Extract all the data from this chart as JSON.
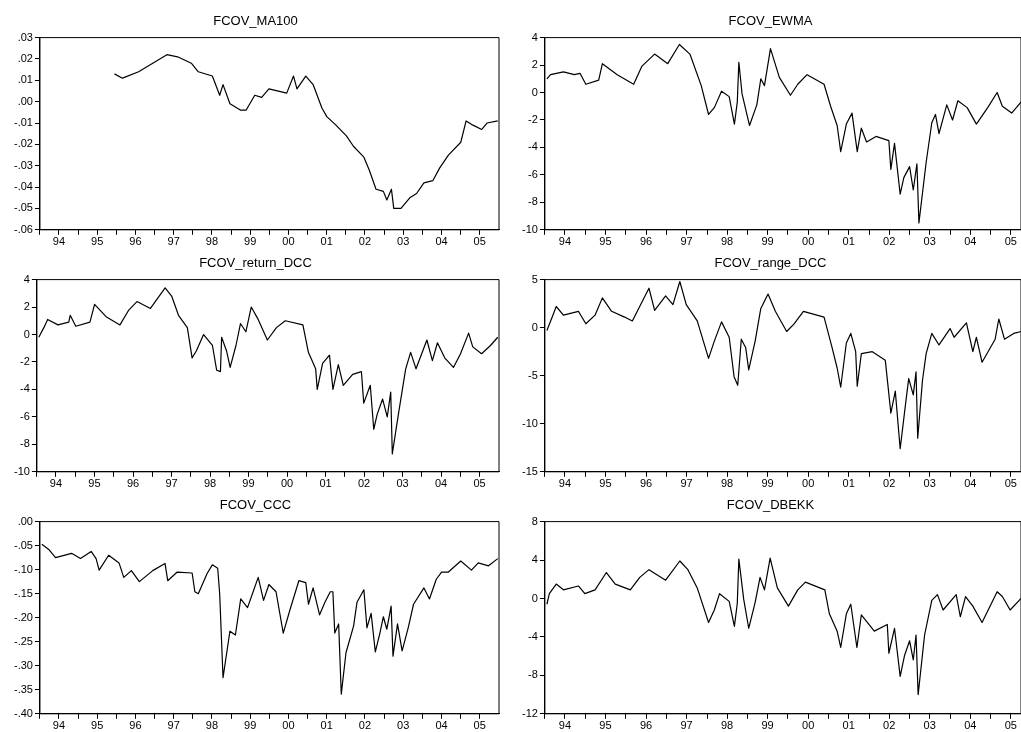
{
  "chart_data": [
    {
      "type": "line",
      "title": "FCOV_MA100",
      "color": "#000000",
      "marker": "none",
      "grid": false,
      "xlim": [
        "1994-01-01",
        "2006-01-01"
      ],
      "xticks": [
        {
          "value": "1994-01-01",
          "label": null
        },
        {
          "value": "1994-07-01",
          "label": "94"
        },
        {
          "value": "1995-01-01",
          "label": null
        },
        {
          "value": "1995-07-01",
          "label": "95"
        },
        {
          "value": "1996-01-01",
          "label": null
        },
        {
          "value": "1996-07-01",
          "label": "96"
        },
        {
          "value": "1997-01-01",
          "label": null
        },
        {
          "value": "1997-07-01",
          "label": "97"
        },
        {
          "value": "1998-01-01",
          "label": null
        },
        {
          "value": "1998-07-01",
          "label": "98"
        },
        {
          "value": "1999-01-01",
          "label": null
        },
        {
          "value": "1999-07-01",
          "label": "99"
        },
        {
          "value": "2000-01-01",
          "label": null
        },
        {
          "value": "2000-07-01",
          "label": "00"
        },
        {
          "value": "2001-01-01",
          "label": null
        },
        {
          "value": "2001-07-01",
          "label": "01"
        },
        {
          "value": "2002-01-01",
          "label": null
        },
        {
          "value": "2002-07-01",
          "label": "02"
        },
        {
          "value": "2003-01-01",
          "label": null
        },
        {
          "value": "2003-07-01",
          "label": "03"
        },
        {
          "value": "2004-01-01",
          "label": null
        },
        {
          "value": "2004-07-01",
          "label": "04"
        },
        {
          "value": "2005-01-01",
          "label": null
        },
        {
          "value": "2005-07-01",
          "label": "05"
        }
      ],
      "ylim": [
        -0.06,
        0.03
      ],
      "yticks": [
        {
          "value": 0.03,
          "label": ".03"
        },
        {
          "value": 0.02,
          "label": ".02"
        },
        {
          "value": 0.01,
          "label": ".01"
        },
        {
          "value": 0,
          "label": ".00"
        },
        {
          "value": -0.01,
          "label": "-.01"
        },
        {
          "value": -0.02,
          "label": "-.02"
        },
        {
          "value": -0.03,
          "label": "-.03"
        },
        {
          "value": -0.04,
          "label": "-.04"
        },
        {
          "value": -0.05,
          "label": "-.05"
        },
        {
          "value": -0.06,
          "label": "-.06"
        }
      ],
      "x": [
        "1995-12-13",
        "1996-02-28",
        "1996-07-31",
        "1996-12-13",
        "1997-04-27",
        "1997-08-07",
        "1997-12-16",
        "1998-02-21",
        "1998-07-05",
        "1998-09-13",
        "1998-10-15",
        "1998-12-20",
        "1999-04-02",
        "1999-05-23",
        "1999-08-14",
        "1999-10-19",
        "1999-12-27",
        "2000-06-14",
        "2000-08-18",
        "2000-09-20",
        "2000-12-13",
        "2001-02-21",
        "2001-05-16",
        "2001-07-02",
        "2001-09-27",
        "2002-01-05",
        "2002-03-15",
        "2002-06-21",
        "2002-08-11",
        "2002-10-15",
        "2002-12-24",
        "2003-01-26",
        "2003-03-11",
        "2003-04-02",
        "2003-06-10",
        "2003-09-02",
        "2003-11-06",
        "2004-01-15",
        "2004-04-09",
        "2004-06-14",
        "2004-09-05",
        "2005-01-01",
        "2005-02-21",
        "2005-04-27",
        "2005-07-20",
        "2005-09-09",
        "2005-12-20"
      ],
      "values": [
        0.013,
        0.011,
        0.014,
        0.018,
        0.022,
        0.021,
        0.018,
        0.014,
        0.012,
        0.003,
        0.008,
        -0.001,
        -0.004,
        -0.004,
        0.003,
        0.002,
        0.006,
        0.004,
        0.012,
        0.006,
        0.012,
        0.008,
        -0.003,
        -0.007,
        -0.011,
        -0.016,
        -0.021,
        -0.026,
        -0.032,
        -0.041,
        -0.042,
        -0.046,
        -0.041,
        -0.05,
        -0.05,
        -0.045,
        -0.043,
        -0.038,
        -0.037,
        -0.031,
        -0.025,
        -0.019,
        -0.009,
        -0.011,
        -0.013,
        -0.01,
        -0.009
      ]
    },
    {
      "type": "line",
      "title": "FCOV_EWMA",
      "color": "#000000",
      "marker": "none",
      "grid": false,
      "xlim": [
        "1994-01-01",
        "2005-10-01"
      ],
      "xticks": [
        {
          "value": "1994-01-01",
          "label": null
        },
        {
          "value": "1994-07-01",
          "label": "94"
        },
        {
          "value": "1995-01-01",
          "label": null
        },
        {
          "value": "1995-07-01",
          "label": "95"
        },
        {
          "value": "1996-01-01",
          "label": null
        },
        {
          "value": "1996-07-01",
          "label": "96"
        },
        {
          "value": "1997-01-01",
          "label": null
        },
        {
          "value": "1997-07-01",
          "label": "97"
        },
        {
          "value": "1998-01-01",
          "label": null
        },
        {
          "value": "1998-07-01",
          "label": "98"
        },
        {
          "value": "1999-01-01",
          "label": null
        },
        {
          "value": "1999-07-01",
          "label": "99"
        },
        {
          "value": "2000-01-01",
          "label": null
        },
        {
          "value": "2000-07-01",
          "label": "00"
        },
        {
          "value": "2001-01-01",
          "label": null
        },
        {
          "value": "2001-07-01",
          "label": "01"
        },
        {
          "value": "2002-01-01",
          "label": null
        },
        {
          "value": "2002-07-01",
          "label": "02"
        },
        {
          "value": "2003-01-01",
          "label": null
        },
        {
          "value": "2003-07-01",
          "label": "03"
        },
        {
          "value": "2004-01-01",
          "label": null
        },
        {
          "value": "2004-07-01",
          "label": "04"
        },
        {
          "value": "2005-01-01",
          "label": null
        },
        {
          "value": "2005-07-01",
          "label": "05"
        }
      ],
      "ylim": [
        -10,
        4
      ],
      "yticks": [
        4,
        2,
        0,
        -2,
        -4,
        -6,
        -8,
        -10
      ],
      "x": [
        "1994-01-19",
        "1994-02-21",
        "1994-06-17",
        "1994-09-23",
        "1994-11-13",
        "1995-01-05",
        "1995-05-01",
        "1995-06-03",
        "1995-10-15",
        "1996-03-11",
        "1996-05-23",
        "1996-09-16",
        "1997-01-12",
        "1997-04-27",
        "1997-07-31",
        "1997-11-10",
        "1998-01-15",
        "1998-03-08",
        "1998-05-12",
        "1998-07-20",
        "1998-09-05",
        "1998-10-01",
        "1998-10-15",
        "1998-11-13",
        "1999-01-19",
        "1999-03-26",
        "1999-05-01",
        "1999-06-03",
        "1999-07-27",
        "1999-10-15",
        "2000-01-23",
        "2000-03-29",
        "2000-06-21",
        "2000-11-21",
        "2001-01-19",
        "2001-03-19",
        "2001-04-20",
        "2001-06-10",
        "2001-07-31",
        "2001-09-16",
        "2001-10-23",
        "2001-12-09",
        "2002-03-04",
        "2002-06-28",
        "2002-07-16",
        "2002-08-18",
        "2002-10-08",
        "2002-11-10",
        "2003-01-01",
        "2003-02-03",
        "2003-03-08",
        "2003-03-26",
        "2003-05-30",
        "2003-07-20",
        "2003-08-22",
        "2003-09-23",
        "2003-12-02",
        "2004-01-23",
        "2004-03-11",
        "2004-06-03",
        "2004-08-25",
        "2004-12-05",
        "2005-02-28",
        "2005-04-16",
        "2005-07-09",
        "2005-10-01"
      ],
      "values": [
        1.0,
        1.3,
        1.5,
        1.3,
        1.4,
        0.6,
        0.9,
        2.1,
        1.3,
        0.6,
        1.9,
        2.8,
        2.1,
        3.5,
        2.8,
        0.5,
        -1.6,
        -1.1,
        0.1,
        -0.3,
        -2.3,
        -0.7,
        2.2,
        -0.1,
        -2.4,
        -0.9,
        1.0,
        0.5,
        3.2,
        1.1,
        -0.2,
        0.6,
        1.3,
        0.6,
        -1.0,
        -2.4,
        -4.3,
        -2.3,
        -1.5,
        -4.3,
        -2.6,
        -3.6,
        -3.2,
        -3.5,
        -5.6,
        -3.7,
        -7.4,
        -6.2,
        -5.4,
        -7.1,
        -5.2,
        -9.5,
        -5.1,
        -2.2,
        -1.6,
        -3.0,
        -0.9,
        -2.0,
        -0.6,
        -1.1,
        -2.3,
        -1.1,
        0.0,
        -1.0,
        -1.5,
        -0.7
      ]
    },
    {
      "type": "line",
      "title": "FCOV_return_DCC",
      "color": "#000000",
      "marker": "none",
      "grid": false,
      "xlim": [
        "1994-01-01",
        "2006-01-01"
      ],
      "xticks": [
        {
          "value": "1994-01-01",
          "label": null
        },
        {
          "value": "1994-07-01",
          "label": "94"
        },
        {
          "value": "1995-01-01",
          "label": null
        },
        {
          "value": "1995-07-01",
          "label": "95"
        },
        {
          "value": "1996-01-01",
          "label": null
        },
        {
          "value": "1996-07-01",
          "label": "96"
        },
        {
          "value": "1997-01-01",
          "label": null
        },
        {
          "value": "1997-07-01",
          "label": "97"
        },
        {
          "value": "1998-01-01",
          "label": null
        },
        {
          "value": "1998-07-01",
          "label": "98"
        },
        {
          "value": "1999-01-01",
          "label": null
        },
        {
          "value": "1999-07-01",
          "label": "99"
        },
        {
          "value": "2000-01-01",
          "label": null
        },
        {
          "value": "2000-07-01",
          "label": "00"
        },
        {
          "value": "2001-01-01",
          "label": null
        },
        {
          "value": "2001-07-01",
          "label": "01"
        },
        {
          "value": "2002-01-01",
          "label": null
        },
        {
          "value": "2002-07-01",
          "label": "02"
        },
        {
          "value": "2003-01-01",
          "label": null
        },
        {
          "value": "2003-07-01",
          "label": "03"
        },
        {
          "value": "2004-01-01",
          "label": null
        },
        {
          "value": "2004-07-01",
          "label": "04"
        },
        {
          "value": "2005-01-01",
          "label": null
        },
        {
          "value": "2005-07-01",
          "label": "05"
        }
      ],
      "ylim": [
        -10,
        4
      ],
      "yticks": [
        4,
        2,
        0,
        -2,
        -4,
        -6,
        -8,
        -10
      ],
      "x": [
        "1994-01-19",
        "1994-03-08",
        "1994-04-13",
        "1994-07-20",
        "1994-10-30",
        "1994-11-13",
        "1995-01-05",
        "1995-05-19",
        "1995-07-02",
        "1995-10-19",
        "1996-02-28",
        "1996-05-23",
        "1996-08-07",
        "1996-12-13",
        "1997-05-01",
        "1997-07-02",
        "1997-09-05",
        "1997-11-28",
        "1998-01-12",
        "1998-02-21",
        "1998-05-01",
        "1998-07-24",
        "1998-09-02",
        "1998-10-08",
        "1998-10-19",
        "1998-12-05",
        "1999-01-08",
        "1999-03-04",
        "1999-04-16",
        "1999-06-06",
        "1999-07-27",
        "1999-10-01",
        "1999-12-27",
        "2000-03-22",
        "2000-06-14",
        "2000-11-28",
        "2001-01-19",
        "2001-03-29",
        "2001-04-13",
        "2001-06-03",
        "2001-08-07",
        "2001-09-09",
        "2001-10-30",
        "2001-12-16",
        "2002-03-15",
        "2002-06-06",
        "2002-06-28",
        "2002-08-29",
        "2002-10-01",
        "2002-11-03",
        "2002-12-24",
        "2003-02-06",
        "2003-03-11",
        "2003-03-26",
        "2003-05-23",
        "2003-07-31",
        "2003-09-16",
        "2003-11-06",
        "2004-02-17",
        "2004-04-09",
        "2004-05-27",
        "2004-08-04",
        "2004-10-26",
        "2005-01-01",
        "2005-03-19",
        "2005-04-27",
        "2005-07-20",
        "2005-10-12",
        "2005-12-20"
      ],
      "values": [
        -0.2,
        0.5,
        1.1,
        0.7,
        0.9,
        1.4,
        0.6,
        0.9,
        2.2,
        1.3,
        0.7,
        1.8,
        2.4,
        1.9,
        3.4,
        2.8,
        1.4,
        0.5,
        -1.7,
        -1.2,
        0.0,
        -0.8,
        -2.6,
        -2.7,
        -0.2,
        -1.2,
        -2.4,
        -0.8,
        0.8,
        0.2,
        2.0,
        1.1,
        -0.4,
        0.5,
        1.0,
        0.7,
        -1.3,
        -2.5,
        -4.0,
        -2.1,
        -1.5,
        -4.0,
        -2.2,
        -3.7,
        -2.9,
        -2.7,
        -5.0,
        -3.7,
        -6.9,
        -5.8,
        -4.7,
        -6.0,
        -4.2,
        -8.7,
        -5.8,
        -2.5,
        -1.3,
        -2.5,
        -0.4,
        -1.9,
        -0.6,
        -1.7,
        -2.4,
        -1.4,
        0.1,
        -0.9,
        -1.4,
        -0.8,
        -0.2
      ]
    },
    {
      "type": "line",
      "title": "FCOV_range_DCC",
      "color": "#000000",
      "marker": "none",
      "grid": false,
      "xlim": [
        "1994-01-01",
        "2005-10-01"
      ],
      "xticks": [
        {
          "value": "1994-01-01",
          "label": null
        },
        {
          "value": "1994-07-01",
          "label": "94"
        },
        {
          "value": "1995-01-01",
          "label": null
        },
        {
          "value": "1995-07-01",
          "label": "95"
        },
        {
          "value": "1996-01-01",
          "label": null
        },
        {
          "value": "1996-07-01",
          "label": "96"
        },
        {
          "value": "1997-01-01",
          "label": null
        },
        {
          "value": "1997-07-01",
          "label": "97"
        },
        {
          "value": "1998-01-01",
          "label": null
        },
        {
          "value": "1998-07-01",
          "label": "98"
        },
        {
          "value": "1999-01-01",
          "label": null
        },
        {
          "value": "1999-07-01",
          "label": "99"
        },
        {
          "value": "2000-01-01",
          "label": null
        },
        {
          "value": "2000-07-01",
          "label": "00"
        },
        {
          "value": "2001-01-01",
          "label": null
        },
        {
          "value": "2001-07-01",
          "label": "01"
        },
        {
          "value": "2002-01-01",
          "label": null
        },
        {
          "value": "2002-07-01",
          "label": "02"
        },
        {
          "value": "2003-01-01",
          "label": null
        },
        {
          "value": "2003-07-01",
          "label": "03"
        },
        {
          "value": "2004-01-01",
          "label": null
        },
        {
          "value": "2004-07-01",
          "label": "04"
        },
        {
          "value": "2005-01-01",
          "label": null
        },
        {
          "value": "2005-07-01",
          "label": "05"
        }
      ],
      "ylim": [
        -15,
        5
      ],
      "yticks": [
        5,
        0,
        -5,
        -10,
        -15
      ],
      "x": [
        "1994-01-19",
        "1994-03-08",
        "1994-04-13",
        "1994-06-17",
        "1994-10-30",
        "1995-01-05",
        "1995-03-29",
        "1995-06-03",
        "1995-08-25",
        "1995-12-20",
        "1996-02-28",
        "1996-07-27",
        "1996-09-16",
        "1996-12-24",
        "1997-02-28",
        "1997-05-01",
        "1997-06-28",
        "1997-10-05",
        "1998-01-15",
        "1998-03-08",
        "1998-05-12",
        "1998-07-20",
        "1998-09-02",
        "1998-10-05",
        "1998-11-06",
        "1998-12-16",
        "1999-01-12",
        "1999-03-11",
        "1999-05-01",
        "1999-07-05",
        "1999-09-09",
        "1999-12-20",
        "2000-02-25",
        "2000-05-19",
        "2000-11-21",
        "2001-01-26",
        "2001-03-19",
        "2001-04-20",
        "2001-06-10",
        "2001-07-20",
        "2001-09-02",
        "2001-09-16",
        "2001-10-23",
        "2002-01-30",
        "2002-05-27",
        "2002-07-16",
        "2002-08-25",
        "2002-10-08",
        "2002-11-28",
        "2002-12-24",
        "2003-02-03",
        "2003-02-28",
        "2003-03-15",
        "2003-04-27",
        "2003-05-30",
        "2003-07-20",
        "2003-09-23",
        "2004-01-01",
        "2004-02-06",
        "2004-05-27",
        "2004-07-24",
        "2004-08-25",
        "2004-10-15",
        "2005-02-10",
        "2005-03-15",
        "2005-05-05",
        "2005-07-27",
        "2005-10-01"
      ],
      "values": [
        -0.3,
        1.1,
        2.2,
        1.3,
        1.7,
        0.4,
        1.3,
        3.1,
        1.7,
        1.1,
        0.7,
        4.1,
        1.8,
        3.3,
        2.4,
        4.8,
        2.4,
        0.7,
        -3.2,
        -1.4,
        0.6,
        -1.0,
        -5.1,
        -6.0,
        -1.2,
        -2.1,
        -4.4,
        -1.4,
        2.0,
        3.5,
        1.7,
        -0.4,
        0.4,
        1.7,
        1.1,
        -1.8,
        -4.2,
        -6.2,
        -1.6,
        -0.6,
        -2.5,
        -6.1,
        -2.7,
        -2.5,
        -3.4,
        -8.9,
        -6.6,
        -12.6,
        -7.7,
        -5.3,
        -7.0,
        -4.6,
        -11.5,
        -5.5,
        -2.7,
        -0.6,
        -1.8,
        -0.1,
        -1.0,
        0.5,
        -2.5,
        -1.0,
        -3.6,
        -1.2,
        0.9,
        -1.2,
        -0.6,
        -0.4
      ]
    },
    {
      "type": "line",
      "title": "FCOV_CCC",
      "color": "#000000",
      "marker": "none",
      "grid": false,
      "xlim": [
        "1994-01-01",
        "2006-01-01"
      ],
      "xticks": [
        {
          "value": "1994-01-01",
          "label": null
        },
        {
          "value": "1994-07-01",
          "label": "94"
        },
        {
          "value": "1995-01-01",
          "label": null
        },
        {
          "value": "1995-07-01",
          "label": "95"
        },
        {
          "value": "1996-01-01",
          "label": null
        },
        {
          "value": "1996-07-01",
          "label": "96"
        },
        {
          "value": "1997-01-01",
          "label": null
        },
        {
          "value": "1997-07-01",
          "label": "97"
        },
        {
          "value": "1998-01-01",
          "label": null
        },
        {
          "value": "1998-07-01",
          "label": "98"
        },
        {
          "value": "1999-01-01",
          "label": null
        },
        {
          "value": "1999-07-01",
          "label": "99"
        },
        {
          "value": "2000-01-01",
          "label": null
        },
        {
          "value": "2000-07-01",
          "label": "00"
        },
        {
          "value": "2001-01-01",
          "label": null
        },
        {
          "value": "2001-07-01",
          "label": "01"
        },
        {
          "value": "2002-01-01",
          "label": null
        },
        {
          "value": "2002-07-01",
          "label": "02"
        },
        {
          "value": "2003-01-01",
          "label": null
        },
        {
          "value": "2003-07-01",
          "label": "03"
        },
        {
          "value": "2004-01-01",
          "label": null
        },
        {
          "value": "2004-07-01",
          "label": "04"
        },
        {
          "value": "2005-01-01",
          "label": null
        },
        {
          "value": "2005-07-01",
          "label": "05"
        }
      ],
      "ylim": [
        -0.4,
        0
      ],
      "yticks": [
        {
          "value": 0,
          "label": ".00"
        },
        {
          "value": -0.05,
          "label": "-.05"
        },
        {
          "value": -0.1,
          "label": "-.10"
        },
        {
          "value": -0.15,
          "label": "-.15"
        },
        {
          "value": -0.2,
          "label": "-.20"
        },
        {
          "value": -0.25,
          "label": "-.25"
        },
        {
          "value": -0.3,
          "label": "-.30"
        },
        {
          "value": -0.35,
          "label": "-.35"
        },
        {
          "value": -0.4,
          "label": "-.40"
        }
      ],
      "x": [
        "1994-01-19",
        "1994-03-26",
        "1994-05-30",
        "1994-10-30",
        "1995-01-23",
        "1995-05-05",
        "1995-06-21",
        "1995-07-20",
        "1995-10-19",
        "1996-01-26",
        "1996-03-11",
        "1996-05-23",
        "1996-08-07",
        "1996-12-13",
        "1997-04-09",
        "1997-05-05",
        "1997-08-04",
        "1997-12-24",
        "1998-01-19",
        "1998-02-21",
        "1998-05-16",
        "1998-07-05",
        "1998-08-25",
        "1998-09-13",
        "1998-10-15",
        "1998-12-20",
        "1999-02-10",
        "1999-04-02",
        "1999-06-06",
        "1999-09-16",
        "1999-11-06",
        "1999-12-27",
        "2000-03-04",
        "2000-05-12",
        "2000-07-16",
        "2000-10-08",
        "2000-12-13",
        "2001-01-08",
        "2001-02-21",
        "2001-04-24",
        "2001-06-14",
        "2001-08-04",
        "2001-08-29",
        "2001-09-16",
        "2001-10-23",
        "2001-11-17",
        "2002-01-01",
        "2002-03-15",
        "2002-04-16",
        "2002-06-21",
        "2002-07-20",
        "2002-08-29",
        "2002-10-08",
        "2002-11-21",
        "2002-12-24",
        "2003-01-26",
        "2003-03-08",
        "2003-03-26",
        "2003-05-08",
        "2003-06-21",
        "2003-08-18",
        "2003-10-08",
        "2004-01-15",
        "2004-03-08",
        "2004-05-12",
        "2004-07-02",
        "2004-09-05",
        "2005-01-01",
        "2005-04-13",
        "2005-06-17",
        "2005-09-23",
        "2005-12-20"
      ],
      "values": [
        -0.047,
        -0.058,
        -0.075,
        -0.066,
        -0.077,
        -0.062,
        -0.077,
        -0.101,
        -0.07,
        -0.086,
        -0.116,
        -0.102,
        -0.125,
        -0.102,
        -0.087,
        -0.123,
        -0.105,
        -0.107,
        -0.146,
        -0.15,
        -0.108,
        -0.09,
        -0.097,
        -0.15,
        -0.325,
        -0.228,
        -0.236,
        -0.161,
        -0.179,
        -0.116,
        -0.164,
        -0.131,
        -0.146,
        -0.232,
        -0.183,
        -0.123,
        -0.127,
        -0.172,
        -0.138,
        -0.194,
        -0.168,
        -0.146,
        -0.146,
        -0.232,
        -0.213,
        -0.359,
        -0.273,
        -0.217,
        -0.168,
        -0.142,
        -0.221,
        -0.191,
        -0.271,
        -0.232,
        -0.198,
        -0.224,
        -0.176,
        -0.28,
        -0.213,
        -0.269,
        -0.221,
        -0.172,
        -0.138,
        -0.161,
        -0.12,
        -0.105,
        -0.105,
        -0.082,
        -0.101,
        -0.086,
        -0.092,
        -0.077
      ]
    },
    {
      "type": "line",
      "title": "FCOV_DBEKK",
      "color": "#000000",
      "marker": "none",
      "grid": false,
      "xlim": [
        "1994-01-01",
        "2005-10-01"
      ],
      "xticks": [
        {
          "value": "1994-01-01",
          "label": null
        },
        {
          "value": "1994-07-01",
          "label": "94"
        },
        {
          "value": "1995-01-01",
          "label": null
        },
        {
          "value": "1995-07-01",
          "label": "95"
        },
        {
          "value": "1996-01-01",
          "label": null
        },
        {
          "value": "1996-07-01",
          "label": "96"
        },
        {
          "value": "1997-01-01",
          "label": null
        },
        {
          "value": "1997-07-01",
          "label": "97"
        },
        {
          "value": "1998-01-01",
          "label": null
        },
        {
          "value": "1998-07-01",
          "label": "98"
        },
        {
          "value": "1999-01-01",
          "label": null
        },
        {
          "value": "1999-07-01",
          "label": "99"
        },
        {
          "value": "2000-01-01",
          "label": null
        },
        {
          "value": "2000-07-01",
          "label": "00"
        },
        {
          "value": "2001-01-01",
          "label": null
        },
        {
          "value": "2001-07-01",
          "label": "01"
        },
        {
          "value": "2002-01-01",
          "label": null
        },
        {
          "value": "2002-07-01",
          "label": "02"
        },
        {
          "value": "2003-01-01",
          "label": null
        },
        {
          "value": "2003-07-01",
          "label": "03"
        },
        {
          "value": "2004-01-01",
          "label": null
        },
        {
          "value": "2004-07-01",
          "label": "04"
        },
        {
          "value": "2005-01-01",
          "label": null
        },
        {
          "value": "2005-07-01",
          "label": "05"
        }
      ],
      "ylim": [
        -12,
        8
      ],
      "yticks": [
        8,
        4,
        0,
        -4,
        -8,
        -12
      ],
      "x": [
        "1994-01-19",
        "1994-02-10",
        "1994-04-13",
        "1994-06-17",
        "1994-10-30",
        "1994-12-27",
        "1995-03-29",
        "1995-07-09",
        "1995-09-27",
        "1996-02-10",
        "1996-05-05",
        "1996-07-27",
        "1996-12-24",
        "1997-05-01",
        "1997-07-13",
        "1997-10-05",
        "1998-01-15",
        "1998-03-08",
        "1998-04-24",
        "1998-07-20",
        "1998-09-05",
        "1998-10-01",
        "1998-10-15",
        "1998-11-28",
        "1999-01-12",
        "1999-03-11",
        "1999-04-24",
        "1999-06-03",
        "1999-07-24",
        "1999-09-27",
        "2000-01-05",
        "2000-03-29",
        "2000-06-06",
        "2000-11-28",
        "2001-01-08",
        "2001-03-19",
        "2001-04-20",
        "2001-06-10",
        "2001-07-20",
        "2001-09-13",
        "2001-10-23",
        "2002-02-17",
        "2002-06-14",
        "2002-06-28",
        "2002-08-18",
        "2002-10-08",
        "2002-11-17",
        "2003-01-01",
        "2003-02-03",
        "2003-02-28",
        "2003-03-19",
        "2003-05-16",
        "2003-07-20",
        "2003-09-09",
        "2003-10-30",
        "2004-02-25",
        "2004-04-02",
        "2004-05-19",
        "2004-07-24",
        "2004-10-15",
        "2005-02-28",
        "2005-04-16",
        "2005-06-25",
        "2005-10-01"
      ],
      "values": [
        -0.6,
        0.5,
        1.5,
        0.9,
        1.3,
        0.5,
        0.9,
        2.7,
        1.5,
        0.9,
        2.2,
        3.0,
        1.9,
        3.9,
        3.0,
        1.1,
        -2.5,
        -1.2,
        0.5,
        -0.3,
        -2.9,
        -0.5,
        4.1,
        -0.1,
        -3.1,
        -0.4,
        2.2,
        0.9,
        4.2,
        1.1,
        -0.8,
        0.9,
        1.7,
        0.9,
        -1.6,
        -3.4,
        -5.1,
        -1.6,
        -0.6,
        -5.1,
        -1.7,
        -3.4,
        -2.7,
        -5.7,
        -3.1,
        -8.1,
        -5.9,
        -4.4,
        -6.4,
        -3.8,
        -10.0,
        -3.8,
        -0.2,
        0.4,
        -1.2,
        0.4,
        -1.9,
        0.2,
        -0.8,
        -2.5,
        0.7,
        0.2,
        -1.2,
        0.0
      ]
    }
  ]
}
